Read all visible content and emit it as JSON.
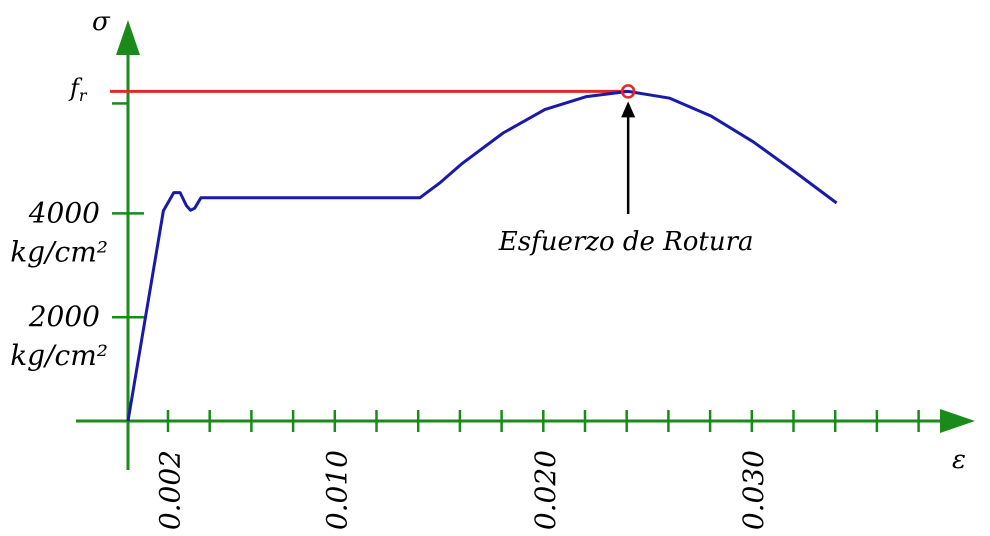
{
  "chart_data": {
    "type": "line",
    "title": "",
    "xlabel": "ε",
    "ylabel": "σ",
    "x_tick_labels": [
      {
        "x": 0.002,
        "label": "0.002"
      },
      {
        "x": 0.01,
        "label": "0.010"
      },
      {
        "x": 0.02,
        "label": "0.020"
      },
      {
        "x": 0.03,
        "label": "0.030"
      }
    ],
    "y_tick_labels": [
      {
        "y": 2000,
        "value_label": "2000",
        "unit_label": "kg/cm²"
      },
      {
        "y": 4000,
        "value_label": "4000",
        "unit_label": "kg/cm²"
      }
    ],
    "fr_label": "fr",
    "fr_value": 6350,
    "annotation": {
      "text": "Esfuerzo de Rotura",
      "x": 0.024,
      "y": 6350
    },
    "xlim": [
      0,
      0.036
    ],
    "ylim": [
      0,
      7600
    ],
    "series": [
      {
        "color": "#1a1aa8",
        "points": [
          [
            0,
            0
          ],
          [
            0.0017,
            4050
          ],
          [
            0.0022,
            4400
          ],
          [
            0.0025,
            4400
          ],
          [
            0.0028,
            4150
          ],
          [
            0.003,
            4060
          ],
          [
            0.0032,
            4100
          ],
          [
            0.0035,
            4300
          ],
          [
            0.006,
            4300
          ],
          [
            0.01,
            4300
          ],
          [
            0.014,
            4300
          ],
          [
            0.015,
            4600
          ],
          [
            0.016,
            4950
          ],
          [
            0.018,
            5550
          ],
          [
            0.02,
            6000
          ],
          [
            0.022,
            6250
          ],
          [
            0.024,
            6350
          ],
          [
            0.026,
            6220
          ],
          [
            0.028,
            5870
          ],
          [
            0.03,
            5380
          ],
          [
            0.032,
            4800
          ],
          [
            0.034,
            4200
          ]
        ]
      }
    ],
    "colors": {
      "axes": "#1a8a1a",
      "fr_line": "#e0282e",
      "marker": "#e0282e",
      "curve": "#1a1aa8",
      "arrow": "#000000"
    }
  }
}
